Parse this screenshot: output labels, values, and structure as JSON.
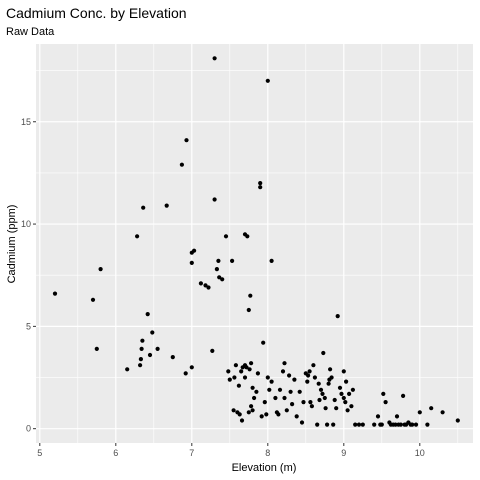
{
  "chart_data": {
    "type": "scatter",
    "title": "Cadmium Conc. by Elevation",
    "subtitle": "Raw Data",
    "xlabel": "Elevation (m)",
    "ylabel": "Cadmium (ppm)",
    "xlim": [
      4.95,
      10.7
    ],
    "ylim": [
      -0.7,
      18.8
    ],
    "x_ticks": [
      5,
      6,
      7,
      8,
      9,
      10
    ],
    "x_minor_ticks": [
      5.5,
      6.5,
      7.5,
      8.5,
      9.5,
      10.5
    ],
    "y_ticks": [
      0,
      5,
      10,
      15
    ],
    "y_minor_ticks": [
      2.5,
      7.5,
      12.5,
      17.5
    ],
    "grid": true,
    "panel_color": "#ebebeb",
    "grid_color": "#ffffff",
    "point_color": "#000000",
    "points": [
      [
        5.2,
        6.6
      ],
      [
        5.7,
        6.3
      ],
      [
        5.75,
        3.9
      ],
      [
        5.8,
        7.8
      ],
      [
        6.15,
        2.9
      ],
      [
        6.28,
        9.4
      ],
      [
        6.32,
        3.1
      ],
      [
        6.33,
        3.4
      ],
      [
        6.34,
        3.9
      ],
      [
        6.35,
        4.3
      ],
      [
        6.36,
        10.8
      ],
      [
        6.42,
        5.6
      ],
      [
        6.45,
        3.6
      ],
      [
        6.48,
        4.7
      ],
      [
        6.55,
        3.9
      ],
      [
        6.67,
        10.9
      ],
      [
        6.75,
        3.5
      ],
      [
        6.87,
        12.9
      ],
      [
        6.92,
        2.7
      ],
      [
        6.93,
        14.1
      ],
      [
        7.0,
        3.0
      ],
      [
        7.0,
        8.1
      ],
      [
        7.0,
        8.6
      ],
      [
        7.03,
        8.7
      ],
      [
        7.12,
        7.1
      ],
      [
        7.18,
        7.0
      ],
      [
        7.22,
        6.9
      ],
      [
        7.27,
        3.8
      ],
      [
        7.3,
        18.1
      ],
      [
        7.3,
        11.2
      ],
      [
        7.33,
        7.8
      ],
      [
        7.35,
        8.2
      ],
      [
        7.36,
        7.4
      ],
      [
        7.4,
        7.3
      ],
      [
        7.45,
        9.4
      ],
      [
        7.48,
        2.8
      ],
      [
        7.5,
        2.4
      ],
      [
        7.53,
        8.2
      ],
      [
        7.55,
        0.9
      ],
      [
        7.56,
        2.5
      ],
      [
        7.58,
        3.1
      ],
      [
        7.6,
        0.8
      ],
      [
        7.62,
        2.1
      ],
      [
        7.63,
        0.7
      ],
      [
        7.65,
        2.8
      ],
      [
        7.66,
        0.4
      ],
      [
        7.67,
        3.0
      ],
      [
        7.7,
        9.5
      ],
      [
        7.7,
        2.5
      ],
      [
        7.7,
        3.1
      ],
      [
        7.72,
        3.0
      ],
      [
        7.73,
        9.4
      ],
      [
        7.75,
        0.8
      ],
      [
        7.75,
        5.8
      ],
      [
        7.76,
        2.9
      ],
      [
        7.77,
        6.5
      ],
      [
        7.78,
        1.1
      ],
      [
        7.78,
        3.2
      ],
      [
        7.8,
        0.9
      ],
      [
        7.8,
        2.0
      ],
      [
        7.82,
        1.5
      ],
      [
        7.85,
        1.8
      ],
      [
        7.87,
        2.7
      ],
      [
        7.9,
        12.0
      ],
      [
        7.9,
        11.8
      ],
      [
        7.92,
        0.6
      ],
      [
        7.94,
        4.2
      ],
      [
        7.96,
        1.3
      ],
      [
        7.98,
        0.7
      ],
      [
        8.0,
        17.0
      ],
      [
        8.0,
        2.5
      ],
      [
        8.02,
        1.9
      ],
      [
        8.05,
        8.2
      ],
      [
        8.05,
        2.3
      ],
      [
        8.1,
        1.5
      ],
      [
        8.12,
        0.8
      ],
      [
        8.14,
        0.7
      ],
      [
        8.16,
        1.9
      ],
      [
        8.2,
        2.8
      ],
      [
        8.22,
        3.2
      ],
      [
        8.22,
        1.5
      ],
      [
        8.25,
        0.9
      ],
      [
        8.28,
        2.6
      ],
      [
        8.3,
        1.8
      ],
      [
        8.32,
        1.2
      ],
      [
        8.35,
        2.4
      ],
      [
        8.38,
        0.6
      ],
      [
        8.42,
        1.8
      ],
      [
        8.45,
        0.3
      ],
      [
        8.47,
        1.3
      ],
      [
        8.5,
        2.7
      ],
      [
        8.52,
        2.3
      ],
      [
        8.53,
        2.6
      ],
      [
        8.55,
        2.8
      ],
      [
        8.56,
        1.3
      ],
      [
        8.58,
        1.1
      ],
      [
        8.6,
        3.1
      ],
      [
        8.62,
        2.5
      ],
      [
        8.65,
        0.2
      ],
      [
        8.67,
        2.2
      ],
      [
        8.68,
        1.4
      ],
      [
        8.7,
        1.9
      ],
      [
        8.72,
        1.7
      ],
      [
        8.73,
        3.7
      ],
      [
        8.75,
        1.5
      ],
      [
        8.76,
        1.0
      ],
      [
        8.78,
        0.2
      ],
      [
        8.8,
        2.2
      ],
      [
        8.81,
        2.4
      ],
      [
        8.82,
        2.9
      ],
      [
        8.84,
        2.5
      ],
      [
        8.86,
        0.2
      ],
      [
        8.88,
        1.4
      ],
      [
        8.9,
        1.0
      ],
      [
        8.92,
        5.5
      ],
      [
        8.95,
        2.0
      ],
      [
        8.97,
        1.7
      ],
      [
        9.0,
        2.8
      ],
      [
        9.0,
        1.5
      ],
      [
        9.02,
        1.3
      ],
      [
        9.03,
        2.3
      ],
      [
        9.05,
        0.9
      ],
      [
        9.07,
        1.7
      ],
      [
        9.1,
        1.1
      ],
      [
        9.12,
        1.9
      ],
      [
        9.15,
        0.2
      ],
      [
        9.2,
        0.2
      ],
      [
        9.25,
        0.2
      ],
      [
        9.4,
        0.2
      ],
      [
        9.45,
        0.6
      ],
      [
        9.48,
        0.2
      ],
      [
        9.5,
        0.2
      ],
      [
        9.52,
        1.7
      ],
      [
        9.55,
        1.3
      ],
      [
        9.6,
        0.3
      ],
      [
        9.62,
        0.2
      ],
      [
        9.65,
        0.2
      ],
      [
        9.68,
        0.2
      ],
      [
        9.7,
        0.6
      ],
      [
        9.72,
        0.2
      ],
      [
        9.75,
        0.2
      ],
      [
        9.78,
        1.6
      ],
      [
        9.8,
        0.2
      ],
      [
        9.82,
        0.2
      ],
      [
        9.85,
        0.3
      ],
      [
        9.88,
        0.2
      ],
      [
        9.9,
        0.2
      ],
      [
        9.95,
        0.2
      ],
      [
        10.0,
        0.8
      ],
      [
        10.1,
        0.2
      ],
      [
        10.15,
        1.0
      ],
      [
        10.3,
        0.8
      ],
      [
        10.5,
        0.4
      ]
    ]
  }
}
